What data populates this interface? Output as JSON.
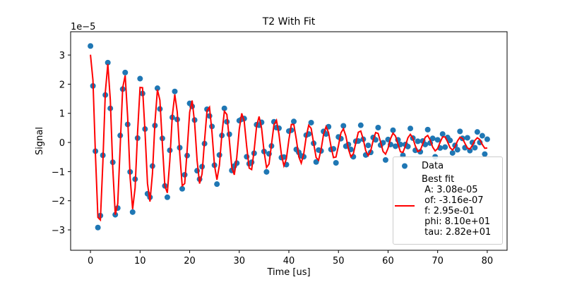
{
  "chart_data": {
    "type": "scatter",
    "title": "T2 With Fit",
    "xlabel": "Time [us]",
    "ylabel": "Signal",
    "y_offset_label": "1e−5",
    "xlim": [
      -4,
      84
    ],
    "ylim": [
      -3.7,
      3.8
    ],
    "xticks": [
      0,
      10,
      20,
      30,
      40,
      50,
      60,
      70,
      80
    ],
    "yticks": [
      {
        "value": -3,
        "label": "−3"
      },
      {
        "value": -2,
        "label": "−2"
      },
      {
        "value": -1,
        "label": "−1"
      },
      0,
      1,
      2,
      3
    ],
    "legend": "lower right",
    "x": [
      0,
      0.5,
      1,
      1.5,
      2,
      2.5,
      3,
      3.5,
      4,
      4.5,
      5,
      5.5,
      6,
      6.5,
      7,
      7.5,
      8,
      8.5,
      9,
      9.5,
      10,
      10.5,
      11,
      11.5,
      12,
      12.5,
      13,
      13.5,
      14,
      14.5,
      15,
      15.5,
      16,
      16.5,
      17,
      17.5,
      18,
      18.5,
      19,
      19.5,
      20,
      20.5,
      21,
      21.5,
      22,
      22.5,
      23,
      23.5,
      24,
      24.5,
      25,
      25.5,
      26,
      26.5,
      27,
      27.5,
      28,
      28.5,
      29,
      29.5,
      30,
      30.5,
      31,
      31.5,
      32,
      32.5,
      33,
      33.5,
      34,
      34.5,
      35,
      35.5,
      36,
      36.5,
      37,
      37.5,
      38,
      38.5,
      39,
      39.5,
      40,
      40.5,
      41,
      41.5,
      42,
      42.5,
      43,
      43.5,
      44,
      44.5,
      45,
      45.5,
      46,
      46.5,
      47,
      47.5,
      48,
      48.5,
      49,
      49.5,
      50,
      50.5,
      51,
      51.5,
      52,
      52.5,
      53,
      53.5,
      54,
      54.5,
      55,
      55.5,
      56,
      56.5,
      57,
      57.5,
      58,
      58.5,
      59,
      59.5,
      60,
      60.5,
      61,
      61.5,
      62,
      62.5,
      63,
      63.5,
      64,
      64.5,
      65,
      65.5,
      66,
      66.5,
      67,
      67.5,
      68,
      68.5,
      69,
      69.5,
      70,
      70.5,
      71,
      71.5,
      72,
      72.5,
      73,
      73.5,
      74,
      74.5,
      75,
      75.5,
      76,
      76.5,
      77,
      77.5,
      78,
      78.5,
      79,
      79.5,
      80
    ],
    "series": [
      {
        "name": "Data",
        "kind": "scatter",
        "color": "#1f77b4",
        "values": [
          3.31,
          1.94,
          -0.3,
          -2.92,
          -2.51,
          -0.44,
          1.63,
          2.74,
          1.17,
          -0.68,
          -2.48,
          -2.25,
          0.24,
          1.83,
          2.4,
          0.62,
          -1.01,
          -2.39,
          -1.26,
          0.15,
          2.19,
          1.68,
          0.46,
          -1.76,
          -1.88,
          -0.81,
          0.58,
          1.86,
          1.15,
          0.14,
          -1.49,
          -1.88,
          -0.27,
          0.86,
          1.75,
          0.79,
          -0.18,
          -1.59,
          -1.11,
          -0.45,
          1.34,
          1.24,
          0.77,
          -0.97,
          -1.26,
          -0.83,
          -0.04,
          1.14,
          0.91,
          0.55,
          -0.78,
          -1.43,
          -0.43,
          0.24,
          1.17,
          0.71,
          0.28,
          -0.96,
          -0.81,
          -0.71,
          0.75,
          0.8,
          0.82,
          -0.49,
          -0.73,
          -0.68,
          -0.37,
          0.61,
          0.59,
          0.69,
          -0.31,
          -1.01,
          -0.39,
          -0.12,
          0.71,
          0.51,
          0.49,
          -0.52,
          -0.5,
          -0.76,
          0.39,
          0.42,
          0.72,
          -0.24,
          -0.34,
          -0.46,
          -0.49,
          0.25,
          0.29,
          0.68,
          -0.03,
          -0.67,
          -0.26,
          -0.29,
          0.38,
          0.29,
          0.54,
          -0.24,
          -0.22,
          -0.7,
          0.19,
          0.13,
          0.57,
          -0.13,
          -0.07,
          -0.24,
          -0.49,
          0.04,
          0.05,
          0.59,
          0.11,
          -0.43,
          -0.1,
          -0.34,
          0.17,
          0.09,
          0.51,
          -0.09,
          -0.01,
          -0.6,
          0.1,
          -0.07,
          0.42,
          -0.13,
          0.09,
          -0.07,
          -0.44,
          -0.07,
          -0.14,
          0.48,
          0.15,
          -0.27,
          0.04,
          -0.32,
          0.05,
          -0.07,
          0.44,
          -0.02,
          0.14,
          -0.49,
          0.09,
          -0.19,
          0.29,
          -0.16,
          0.17,
          0.07,
          -0.36,
          -0.1,
          -0.25,
          0.38,
          0.14,
          -0.18,
          0.16,
          -0.28,
          0,
          -0.18,
          0.36,
          0,
          0.23,
          -0.4,
          0.11
        ]
      },
      {
        "name": "Best fit\n A: 3.08e-05\n of: -3.16e-07\n f: 2.95e-01\n phi: 8.10e+01\n tau: 2.82e+01",
        "kind": "line",
        "color": "#ff0000",
        "values": [
          3.01,
          2.14,
          -0.4,
          -2.57,
          -2.66,
          -0.69,
          1.73,
          2.69,
          1.47,
          -0.88,
          -2.48,
          -2.1,
          -0.11,
          1.88,
          2.3,
          0.87,
          -1.21,
          -2.29,
          -1.56,
          0.35,
          1.89,
          1.88,
          0.36,
          -1.41,
          -2.03,
          -1.06,
          0.68,
          1.81,
          1.45,
          -0.06,
          -1.49,
          -1.73,
          -0.62,
          0.91,
          1.65,
          1.04,
          -0.38,
          -1.49,
          -1.41,
          -0.25,
          1.04,
          1.44,
          0.67,
          -0.62,
          -1.41,
          -1.08,
          0.06,
          1.09,
          1.21,
          0.35,
          -0.78,
          -1.28,
          -0.78,
          0.29,
          1.07,
          0.96,
          0.08,
          -0.86,
          -1.11,
          -0.51,
          0.45,
          1.0,
          0.72,
          -0.14,
          -0.88,
          -0.93,
          -0.27,
          0.56,
          0.89,
          0.49,
          -0.31,
          -0.86,
          -0.74,
          -0.07,
          0.61,
          0.76,
          0.29,
          -0.42,
          -0.8,
          -0.56,
          0.09,
          0.62,
          0.62,
          0.11,
          -0.49,
          -0.71,
          -0.39,
          0.2,
          0.59,
          0.48,
          -0.03,
          -0.52,
          -0.61,
          -0.24,
          0.28,
          0.54,
          0.34,
          -0.14,
          -0.52,
          -0.5,
          -0.11,
          0.33,
          0.47,
          0.22,
          -0.22,
          -0.49,
          -0.39,
          -0.01,
          0.35,
          0.39,
          0.11,
          -0.28,
          -0.45,
          -0.29,
          0.07,
          0.34,
          0.31,
          0.01,
          -0.31,
          -0.4,
          -0.2,
          0.13,
          0.32,
          0.22,
          -0.06,
          -0.32,
          -0.34,
          -0.12,
          0.16,
          0.28,
          0.15,
          -0.12,
          -0.31,
          -0.27,
          -0.05,
          0.18,
          0.24,
          0.08,
          -0.16,
          -0.29,
          -0.21,
          0.01,
          0.19,
          0.19,
          0.02,
          -0.18,
          -0.26,
          -0.15,
          0.05,
          0.18,
          0.14,
          -0.03,
          -0.19,
          -0.23,
          -0.1,
          0.07,
          0.16,
          0.1,
          -0.07,
          -0.2,
          -0.19
        ]
      }
    ]
  }
}
